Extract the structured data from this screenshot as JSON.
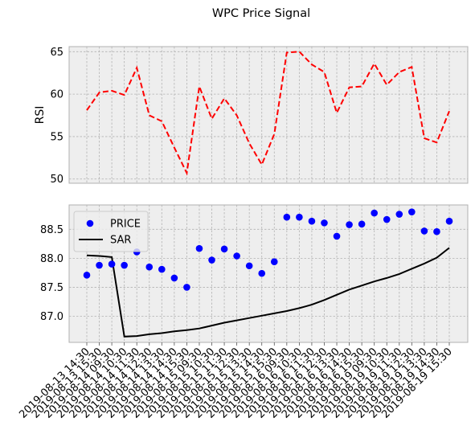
{
  "chart_data": {
    "title": "WPC Price Signal",
    "categories": [
      "2019-08-13 14:30",
      "2019-08-13 15:30",
      "2019-08-14 09:30",
      "2019-08-14 10:30",
      "2019-08-14 11:30",
      "2019-08-14 12:30",
      "2019-08-14 13:30",
      "2019-08-14 14:30",
      "2019-08-14 15:30",
      "2019-08-15 09:30",
      "2019-08-15 10:30",
      "2019-08-15 11:30",
      "2019-08-15 12:30",
      "2019-08-15 13:30",
      "2019-08-15 14:30",
      "2019-08-15 15:30",
      "2019-08-16 09:30",
      "2019-08-16 10:30",
      "2019-08-16 11:30",
      "2019-08-16 12:30",
      "2019-08-16 13:30",
      "2019-08-16 14:30",
      "2019-08-16 15:30",
      "2019-08-19 09:30",
      "2019-08-19 10:30",
      "2019-08-19 11:30",
      "2019-08-19 12:30",
      "2019-08-19 13:30",
      "2019-08-19 14:30",
      "2019-08-19 15:30"
    ],
    "charts": [
      {
        "type": "line",
        "ylabel": "RSI",
        "ylim": [
          49.5,
          65.6
        ],
        "yticks": [
          50,
          55,
          60,
          65
        ],
        "grid": true,
        "series": [
          {
            "color": "#ff0000",
            "style": "dashed",
            "values": [
              58.1,
              60.2,
              60.4,
              59.9,
              63.1,
              57.5,
              56.8,
              53.7,
              50.7,
              60.9,
              57.1,
              59.5,
              57.5,
              54.2,
              51.7,
              55.3,
              64.9,
              65.0,
              63.5,
              62.6,
              57.8,
              60.8,
              60.9,
              63.6,
              61.1,
              62.6,
              63.2,
              54.8,
              54.3,
              58.0
            ]
          }
        ]
      },
      {
        "type": "line+scatter",
        "ylim": [
          86.55,
          88.92
        ],
        "yticks": [
          87.0,
          87.5,
          88.0,
          88.5
        ],
        "grid": true,
        "legend_position": "top-left",
        "series": [
          {
            "name": "PRICE",
            "type": "scatter",
            "color": "#0000ff",
            "values": [
              87.71,
              87.88,
              87.9,
              87.88,
              88.11,
              87.85,
              87.81,
              87.66,
              87.5,
              88.17,
              87.97,
              88.16,
              88.04,
              87.87,
              87.74,
              87.94,
              88.71,
              88.71,
              88.64,
              88.61,
              88.38,
              88.58,
              88.59,
              88.78,
              88.67,
              88.76,
              88.8,
              88.47,
              88.46,
              88.64
            ]
          },
          {
            "name": "SAR",
            "type": "line",
            "color": "#000000",
            "values": [
              88.05,
              88.04,
              88.02,
              86.65,
              86.66,
              86.69,
              86.71,
              86.74,
              86.76,
              86.79,
              86.84,
              86.89,
              86.93,
              86.97,
              87.01,
              87.05,
              87.09,
              87.14,
              87.2,
              87.28,
              87.37,
              87.46,
              87.53,
              87.6,
              87.66,
              87.73,
              87.82,
              87.91,
              88.01,
              88.18
            ]
          }
        ]
      }
    ]
  }
}
